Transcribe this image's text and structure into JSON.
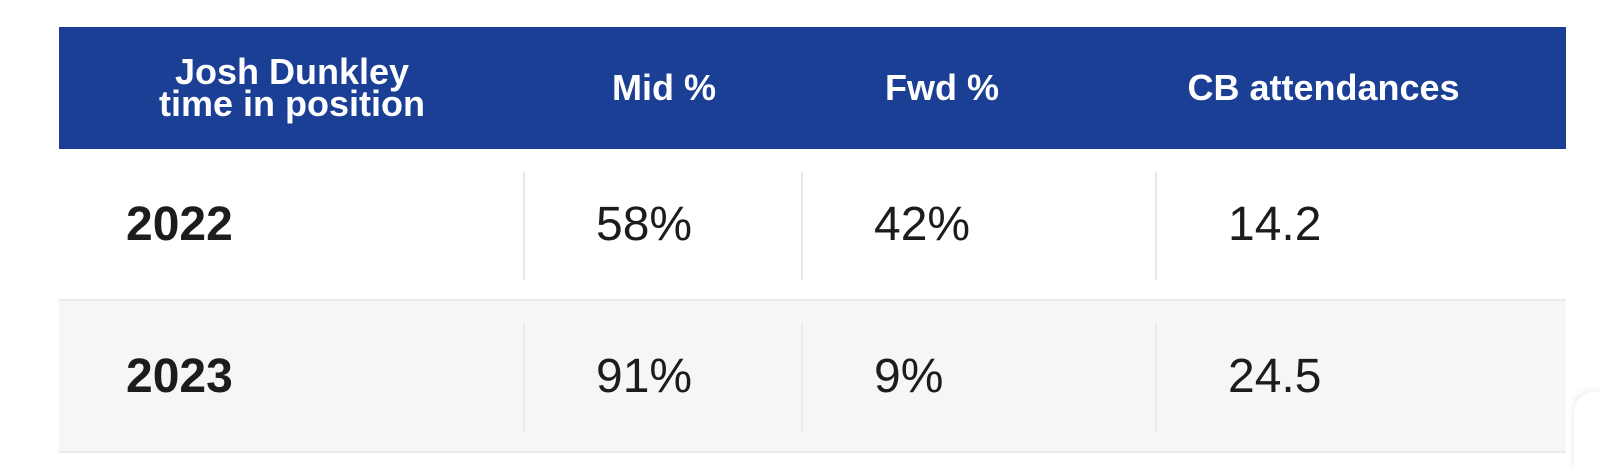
{
  "chart_data": {
    "type": "table",
    "columns": [
      "Josh Dunkley time in position",
      "Mid %",
      "Fwd %",
      "CB attendances"
    ],
    "header_lines": [
      "Josh Dunkley",
      "time in position"
    ],
    "rows": [
      {
        "year": "2022",
        "mid": "58%",
        "fwd": "42%",
        "cb": "14.2"
      },
      {
        "year": "2023",
        "mid": "91%",
        "fwd": "9%",
        "cb": "24.5"
      }
    ],
    "colors": {
      "header_bg": "#1b3f94",
      "header_text": "#ffffff",
      "alt_row_bg": "#f6f6f6"
    }
  }
}
